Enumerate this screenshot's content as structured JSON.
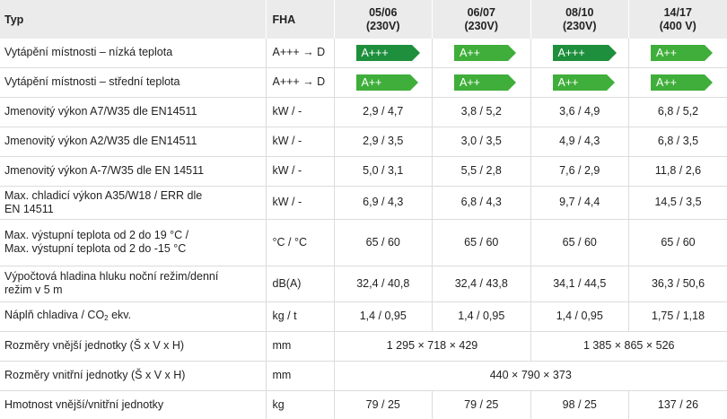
{
  "header": {
    "param": "Typ",
    "unit": "FHA",
    "models": [
      {
        "line1": "05/06",
        "line2": "(230V)"
      },
      {
        "line1": "06/07",
        "line2": "(230V)"
      },
      {
        "line1": "08/10",
        "line2": "(230V)"
      },
      {
        "line1": "14/17",
        "line2": "(400 V)"
      }
    ]
  },
  "rows": {
    "heat_low": {
      "label": "Vytápění místnosti – nízká teplota",
      "unit": "A+++ → D",
      "v": [
        "A+++",
        "A++",
        "A+++",
        "A++"
      ]
    },
    "heat_mid": {
      "label": "Vytápění místnosti – střední teplota",
      "unit": "A+++ → D",
      "v": [
        "A++",
        "A++",
        "A++",
        "A++"
      ]
    },
    "a7w35": {
      "label": "Jmenovitý výkon A7/W35 dle EN14511",
      "unit": "kW / -",
      "v": [
        "2,9 / 4,7",
        "3,8 / 5,2",
        "3,6 / 4,9",
        "6,8 / 5,2"
      ]
    },
    "a2w35": {
      "label": "Jmenovitý výkon A2/W35 dle EN14511",
      "unit": "kW / -",
      "v": [
        "2,9 / 3,5",
        "3,0 / 3,5",
        "4,9 / 4,3",
        "6,8 / 3,5"
      ]
    },
    "am7w35": {
      "label": "Jmenovitý výkon A-7/W35 dle EN 14511",
      "unit": "kW / -",
      "v": [
        "5,0 / 3,1",
        "5,5 / 2,8",
        "7,6 / 2,9",
        "11,8 / 2,6"
      ]
    },
    "cooling": {
      "label_1": "Max. chladicí výkon A35/W18 / ERR dle",
      "label_2": "EN 14511",
      "unit": "kW / -",
      "v": [
        "6,9 / 4,3",
        "6,8 / 4,3",
        "9,7 / 4,4",
        "14,5 / 3,5"
      ]
    },
    "outtemp": {
      "label_1": "Max. výstupní teplota od 2 do 19 °C /",
      "label_2": "Max. výstupní teplota od 2 do -15 °C",
      "unit": "°C / °C",
      "v": [
        "65 / 60",
        "65 / 60",
        "65 / 60",
        "65 / 60"
      ]
    },
    "noise": {
      "label_1": "Výpočtová hladina hluku noční režim/denní",
      "label_2": "režim v 5 m",
      "unit": "dB(A)",
      "v": [
        "32,4 / 40,8",
        "32,4 / 43,8",
        "34,1 / 44,5",
        "36,3 / 50,6"
      ]
    },
    "refrig": {
      "label_pre": "Náplň chladiva / CO",
      "label_sub": "2",
      "label_post": " ekv.",
      "unit": "kg / t",
      "v": [
        "1,4 / 0,95",
        "1,4 / 0,95",
        "1,4 / 0,95",
        "1,75 / 1,18"
      ]
    },
    "outdoor_dim": {
      "label": "Rozměry vnější jednotky (Š x V x H)",
      "unit": "mm",
      "v_a": "1 295 × 718 × 429",
      "v_b": "1 385 × 865 × 526"
    },
    "indoor_dim": {
      "label": "Rozměry vnitřní jednotky (Š x V x H)",
      "unit": "mm",
      "v": "440 × 790 × 373"
    },
    "weight": {
      "label": "Hmotnost vnější/vnitřní jednotky",
      "unit": "kg",
      "v": [
        "79 / 25",
        "79 / 25",
        "98 / 25",
        "137 / 26"
      ]
    }
  },
  "colors": {
    "header_bg": "#ebebeb",
    "badge_dark": "#1e8f3c",
    "badge_light": "#3fae3a",
    "grid": "#dcdcdc"
  }
}
